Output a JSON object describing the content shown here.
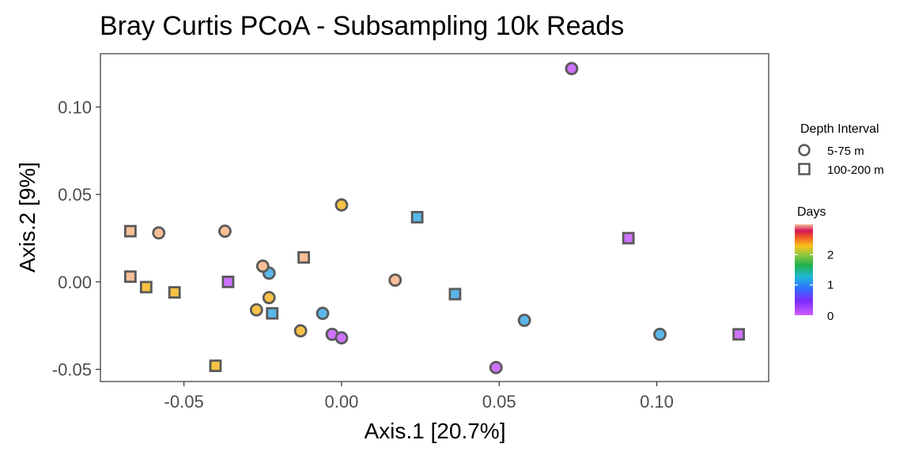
{
  "chart_data": {
    "type": "scatter",
    "title": "Bray Curtis PCoA - Subsampling 10k Reads",
    "xlabel": "Axis.1   [20.7%]",
    "ylabel": "Axis.2   [9%]",
    "xlim": [
      -0.0765,
      0.1355
    ],
    "ylim": [
      -0.057,
      0.1305
    ],
    "xticks": [
      -0.05,
      0.0,
      0.05,
      0.1
    ],
    "xtick_labels": [
      "-0.05",
      "0.00",
      "0.05",
      "0.10"
    ],
    "yticks": [
      -0.05,
      0.0,
      0.05,
      0.1
    ],
    "ytick_labels": [
      "-0.05",
      "0.00",
      "0.05",
      "0.10"
    ],
    "grid": false,
    "legend_position": "right",
    "colors": {
      "days_0": "#CF72FF",
      "days_1": "#5AB7E8",
      "days_2": "#F7C245",
      "days_3": "#F7BE98",
      "marker_stroke": "#595959"
    },
    "legend": {
      "shape_title": "Depth Interval",
      "shapes": [
        {
          "label": "5-75 m",
          "shape": "circle"
        },
        {
          "label": "100-200 m",
          "shape": "square"
        }
      ],
      "color_title": "Days",
      "color_ticks": [
        {
          "label": "2",
          "value": 2
        },
        {
          "label": "1",
          "value": 1
        },
        {
          "label": "0",
          "value": 0
        }
      ],
      "color_range": [
        0,
        3
      ]
    },
    "points": [
      {
        "x": 0.073,
        "y": 0.122,
        "depth": "5-75 m",
        "days": 0
      },
      {
        "x": 0.049,
        "y": -0.049,
        "depth": "5-75 m",
        "days": 0
      },
      {
        "x": -0.003,
        "y": -0.03,
        "depth": "5-75 m",
        "days": 0
      },
      {
        "x": 0.0,
        "y": -0.032,
        "depth": "5-75 m",
        "days": 0
      },
      {
        "x": -0.023,
        "y": 0.005,
        "depth": "5-75 m",
        "days": 1
      },
      {
        "x": -0.006,
        "y": -0.018,
        "depth": "5-75 m",
        "days": 1
      },
      {
        "x": 0.058,
        "y": -0.022,
        "depth": "5-75 m",
        "days": 1
      },
      {
        "x": 0.101,
        "y": -0.03,
        "depth": "5-75 m",
        "days": 1
      },
      {
        "x": 0.0,
        "y": 0.044,
        "depth": "5-75 m",
        "days": 2
      },
      {
        "x": -0.023,
        "y": -0.009,
        "depth": "5-75 m",
        "days": 2
      },
      {
        "x": -0.027,
        "y": -0.016,
        "depth": "5-75 m",
        "days": 2
      },
      {
        "x": -0.013,
        "y": -0.028,
        "depth": "5-75 m",
        "days": 2
      },
      {
        "x": -0.058,
        "y": 0.028,
        "depth": "5-75 m",
        "days": 3
      },
      {
        "x": -0.037,
        "y": 0.029,
        "depth": "5-75 m",
        "days": 3
      },
      {
        "x": -0.025,
        "y": 0.009,
        "depth": "5-75 m",
        "days": 3
      },
      {
        "x": 0.017,
        "y": 0.001,
        "depth": "5-75 m",
        "days": 3
      },
      {
        "x": 0.091,
        "y": 0.025,
        "depth": "100-200 m",
        "days": 0
      },
      {
        "x": -0.036,
        "y": 0.0,
        "depth": "100-200 m",
        "days": 0
      },
      {
        "x": 0.126,
        "y": -0.03,
        "depth": "100-200 m",
        "days": 0
      },
      {
        "x": 0.024,
        "y": 0.037,
        "depth": "100-200 m",
        "days": 1
      },
      {
        "x": -0.022,
        "y": -0.018,
        "depth": "100-200 m",
        "days": 1
      },
      {
        "x": 0.036,
        "y": -0.007,
        "depth": "100-200 m",
        "days": 1
      },
      {
        "x": -0.062,
        "y": -0.003,
        "depth": "100-200 m",
        "days": 2
      },
      {
        "x": -0.053,
        "y": -0.006,
        "depth": "100-200 m",
        "days": 2
      },
      {
        "x": -0.04,
        "y": -0.048,
        "depth": "100-200 m",
        "days": 2
      },
      {
        "x": -0.067,
        "y": 0.029,
        "depth": "100-200 m",
        "days": 3
      },
      {
        "x": -0.067,
        "y": 0.003,
        "depth": "100-200 m",
        "days": 3
      },
      {
        "x": -0.012,
        "y": 0.014,
        "depth": "100-200 m",
        "days": 3
      }
    ]
  }
}
